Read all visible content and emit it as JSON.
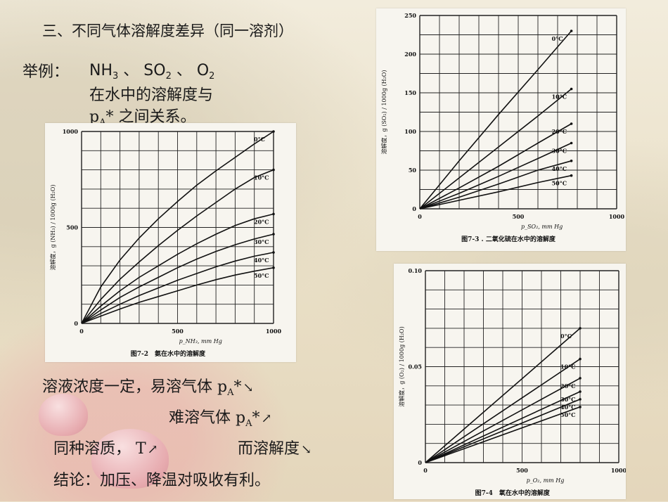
{
  "slide": {
    "title": "三、不同气体溶解度差异（同一溶剂）",
    "example_label": "举例：",
    "gases": {
      "nh3": "NH",
      "nh3_sub": "3",
      "sep1": " 、 ",
      "so2": "SO",
      "so2_sub": "2",
      "sep2": " 、 ",
      "o2": "O",
      "o2_sub": "2"
    },
    "line2": "在水中的溶解度与",
    "line3_p": "p",
    "line3_sub": "A",
    "line3_rest": "* 之间关系。",
    "c1_text": "溶液浓度一定，易溶气体 p",
    "c1_sub": "A",
    "c1_star": "*",
    "c2_text": "难溶气体 p",
    "c2_sub": "A",
    "c2_star": "*",
    "c3_text": "同种溶质，  T",
    "c3_text2": "而溶解度",
    "conclusion": "结论：加压、降温对吸收有利。",
    "arrow_down": "↘",
    "arrow_up": "↗"
  },
  "chart_data": [
    {
      "id": "nh3",
      "type": "line",
      "title": "图7-2　氨在水中的溶解度",
      "ylabel": "溶解度，g (NH₃) / 1000g (H₂O)",
      "xlabel": "p_NH₃, mm Hg",
      "xlim": [
        0,
        1000
      ],
      "ylim": [
        0,
        1000
      ],
      "xticks": [
        "0",
        "500",
        "1000"
      ],
      "yticks": [
        "0",
        "500",
        "1000"
      ],
      "grid": true,
      "series": [
        {
          "name": "0°C",
          "x": [
            0,
            100,
            200,
            300,
            400,
            500,
            600,
            700,
            800,
            900,
            1000
          ],
          "values": [
            0,
            190,
            330,
            445,
            545,
            635,
            720,
            795,
            865,
            935,
            1000
          ]
        },
        {
          "name": "10°C",
          "x": [
            0,
            100,
            200,
            300,
            400,
            500,
            600,
            700,
            800,
            900,
            1000
          ],
          "values": [
            0,
            125,
            230,
            320,
            405,
            485,
            560,
            630,
            700,
            760,
            800
          ]
        },
        {
          "name": "20°C",
          "x": [
            0,
            100,
            200,
            300,
            400,
            500,
            600,
            700,
            800,
            900,
            1000
          ],
          "values": [
            0,
            90,
            170,
            240,
            300,
            360,
            415,
            465,
            510,
            545,
            570
          ]
        },
        {
          "name": "30°C",
          "x": [
            0,
            100,
            200,
            300,
            400,
            500,
            600,
            700,
            800,
            900,
            1000
          ],
          "values": [
            0,
            70,
            135,
            190,
            240,
            290,
            335,
            375,
            410,
            440,
            465
          ]
        },
        {
          "name": "40°C",
          "x": [
            0,
            100,
            200,
            300,
            400,
            500,
            600,
            700,
            800,
            900,
            1000
          ],
          "values": [
            0,
            52,
            100,
            145,
            185,
            225,
            260,
            295,
            325,
            350,
            370
          ]
        },
        {
          "name": "50°C",
          "x": [
            0,
            100,
            200,
            300,
            400,
            500,
            600,
            700,
            800,
            900,
            1000
          ],
          "values": [
            0,
            38,
            75,
            110,
            140,
            170,
            200,
            228,
            252,
            272,
            290
          ]
        }
      ]
    },
    {
      "id": "so2",
      "type": "line",
      "title": "图7-3 . 二氧化硫在水中的溶解度",
      "ylabel": "溶解度，g (SO₂) / 1000g (H₂O)",
      "xlabel": "p_SO₂, mm Hg",
      "xlim": [
        0,
        1000
      ],
      "ylim": [
        0,
        250
      ],
      "xticks": [
        "0",
        "500",
        "1000"
      ],
      "yticks": [
        "0",
        "50",
        "100",
        "150",
        "200",
        "250"
      ],
      "grid": true,
      "series": [
        {
          "name": "0°C",
          "x": [
            0,
            200,
            400,
            600,
            770
          ],
          "values": [
            0,
            62,
            122,
            180,
            230
          ]
        },
        {
          "name": "10°C",
          "x": [
            0,
            200,
            400,
            600,
            770
          ],
          "values": [
            0,
            40,
            80,
            120,
            155
          ]
        },
        {
          "name": "20°C",
          "x": [
            0,
            200,
            400,
            600,
            770
          ],
          "values": [
            0,
            27,
            55,
            85,
            110
          ]
        },
        {
          "name": "30°C",
          "x": [
            0,
            200,
            400,
            600,
            770
          ],
          "values": [
            0,
            20,
            42,
            65,
            85
          ]
        },
        {
          "name": "40°C",
          "x": [
            0,
            200,
            400,
            600,
            770
          ],
          "values": [
            0,
            15,
            32,
            50,
            62
          ]
        },
        {
          "name": "50°C",
          "x": [
            0,
            200,
            400,
            600,
            770
          ],
          "values": [
            0,
            11,
            22,
            34,
            43
          ]
        }
      ]
    },
    {
      "id": "o2",
      "type": "line",
      "title": "图7-4　氧在水中的溶解度",
      "ylabel": "溶解度，g (O₂) / 1000g (H₂O)",
      "xlabel": "p_O₂, mm Hg",
      "xlim": [
        0,
        1000
      ],
      "ylim": [
        0,
        0.1
      ],
      "xticks": [
        "0",
        "500",
        "1000"
      ],
      "yticks": [
        "0",
        "0.05",
        "0.10"
      ],
      "grid": true,
      "series": [
        {
          "name": "0°C",
          "x": [
            0,
            800
          ],
          "values": [
            0,
            0.07
          ]
        },
        {
          "name": "10°C",
          "x": [
            0,
            800
          ],
          "values": [
            0,
            0.054
          ]
        },
        {
          "name": "20°C",
          "x": [
            0,
            800
          ],
          "values": [
            0,
            0.044
          ]
        },
        {
          "name": "30°C",
          "x": [
            0,
            800
          ],
          "values": [
            0,
            0.037
          ]
        },
        {
          "name": "40°C",
          "x": [
            0,
            800
          ],
          "values": [
            0,
            0.033
          ]
        },
        {
          "name": "50°C",
          "x": [
            0,
            800
          ],
          "values": [
            0,
            0.029
          ]
        }
      ]
    }
  ]
}
